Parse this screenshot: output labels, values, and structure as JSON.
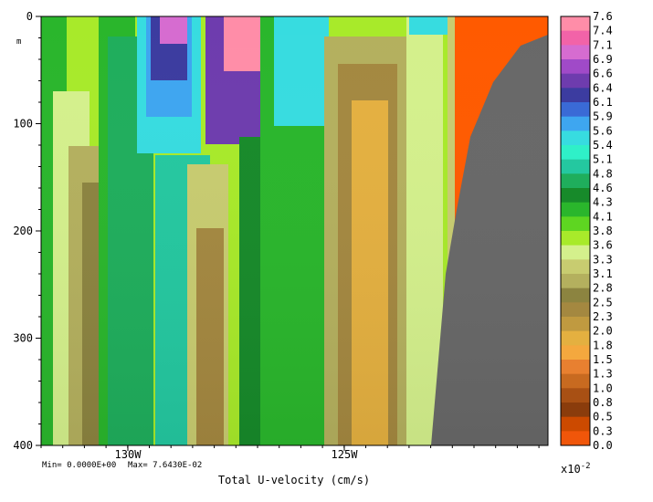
{
  "chart_data": {
    "type": "heatmap",
    "title": "",
    "xlabel": "Total U-velocity (cm/s)",
    "ylabel": "m",
    "x_ticks": [
      "130W",
      "125W"
    ],
    "y_ticks": [
      0,
      100,
      200,
      300,
      400
    ],
    "ylim": [
      400,
      0
    ],
    "colorbar": {
      "labels": [
        "7.6",
        "7.4",
        "7.1",
        "6.9",
        "6.6",
        "6.4",
        "6.1",
        "5.9",
        "5.6",
        "5.4",
        "5.1",
        "4.8",
        "4.6",
        "4.3",
        "4.1",
        "3.8",
        "3.6",
        "3.3",
        "3.1",
        "2.8",
        "2.5",
        "2.3",
        "2.0",
        "1.8",
        "1.5",
        "1.3",
        "1.0",
        "0.8",
        "0.5",
        "0.3",
        "0.0"
      ],
      "multiplier": "x10",
      "exponent": "-2"
    },
    "stats": {
      "min": "Min= 0.0000E+00",
      "max": "Max= 7.6430E-02"
    }
  },
  "colors": {
    "land": "#686868",
    "bands": [
      "#ff8da8",
      "#f263a8",
      "#d66cd0",
      "#a04ac8",
      "#6e3cae",
      "#3c3ca0",
      "#3a6ad6",
      "#3ea6f0",
      "#37dce0",
      "#2ff0c8",
      "#24c8a0",
      "#1fae5c",
      "#178a2a",
      "#2ab62c",
      "#5ed621",
      "#a8ea2a",
      "#d4f08c",
      "#c8cc70",
      "#b4b05e",
      "#8c8440",
      "#a48840",
      "#c09a40",
      "#e4b040",
      "#f4a83e",
      "#e88030",
      "#c86a20",
      "#a85014",
      "#8a3c0c",
      "#cc4a00",
      "#f0560a",
      "#ff5a00"
    ]
  }
}
